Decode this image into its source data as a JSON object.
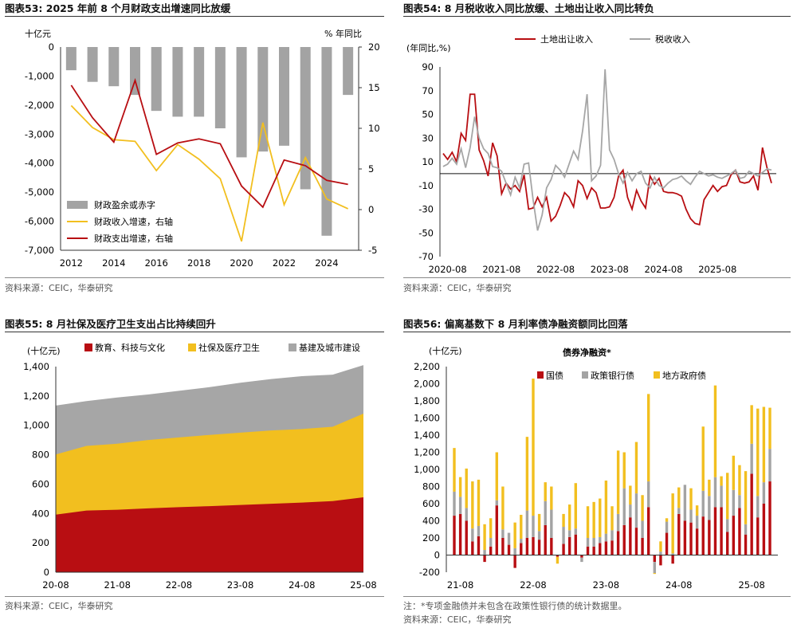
{
  "panels": {
    "p53": {
      "title": "图表53:  2025 年前 8 个月财政支出增速同比放缓",
      "source": "资料来源：CEIC，华泰研究"
    },
    "p54": {
      "title": "图表54:  8 月税收收入同比放缓、土地出让收入同比转负",
      "source": "资料来源：CEIC，华泰研究"
    },
    "p55": {
      "title": "图表55:  8 月社保及医疗卫生支出占比持续回升",
      "source": "资料来源：CEIC，华泰研究"
    },
    "p56": {
      "title": "图表56:  偏离基数下 8 月利率债净融资额同比回落",
      "note": "注：*专项金融债并未包含在政策性银行债的统计数据里。",
      "source": "资料来源：CEIC，华泰研究"
    }
  },
  "colors": {
    "red": "#b80e12",
    "yellow": "#f2bf1f",
    "gray": "#a6a6a6",
    "bar_gray": "#a3a3a3"
  },
  "chart_data": [
    {
      "id": "p53",
      "type": "bar+line",
      "left_unit": "十亿元",
      "right_unit": "% 年同比",
      "left_ylim": [
        -7000,
        0
      ],
      "left_ticks": [
        "0",
        "-1,000",
        "-2,000",
        "-3,000",
        "-4,000",
        "-5,000",
        "-6,000",
        "-7,000"
      ],
      "right_ylim": [
        -5,
        20
      ],
      "right_ticks": [
        "20",
        "15",
        "10",
        "5",
        "0",
        "-5"
      ],
      "x_ticks": [
        "2012",
        "2014",
        "2016",
        "2018",
        "2020",
        "2022",
        "2024"
      ],
      "x": [
        2012,
        2013,
        2014,
        2015,
        2016,
        2017,
        2018,
        2019,
        2020,
        2021,
        2022,
        2023,
        2024,
        2025
      ],
      "series": [
        {
          "name": "财政盈余或赤字",
          "axis": "left",
          "kind": "bar",
          "values": [
            -800,
            -1200,
            -1350,
            -1650,
            -2200,
            -2400,
            -2400,
            -2800,
            -3800,
            -3600,
            -3400,
            -4900,
            -6500,
            -1650
          ]
        },
        {
          "name": "财政收入增速，右轴",
          "axis": "right",
          "kind": "line",
          "values": [
            12.8,
            10.1,
            8.6,
            8.4,
            4.8,
            8.0,
            6.2,
            3.8,
            -3.9,
            10.7,
            0.6,
            6.4,
            1.3,
            0.1
          ]
        },
        {
          "name": "财政支出增速，右轴",
          "axis": "right",
          "kind": "line",
          "values": [
            15.3,
            11.3,
            8.3,
            15.9,
            6.8,
            8.2,
            8.7,
            8.1,
            2.9,
            0.3,
            6.1,
            5.4,
            3.6,
            3.1
          ]
        }
      ]
    },
    {
      "id": "p54",
      "type": "line",
      "ylabel": "(年同比,%)",
      "ylim": [
        -70,
        90
      ],
      "y_ticks": [
        "90",
        "70",
        "50",
        "30",
        "10",
        "-10",
        "-30",
        "-50",
        "-70"
      ],
      "x_ticks": [
        "2020-08",
        "2021-08",
        "2022-08",
        "2023-08",
        "2024-08",
        "2025-08"
      ],
      "x_start": "2020-07",
      "series": [
        {
          "name": "土地出让收入",
          "values": [
            17,
            12,
            18,
            10,
            34,
            28,
            67,
            67,
            20,
            11,
            -2,
            26,
            15,
            -17,
            -8,
            -13,
            -10,
            -15,
            -1,
            -30,
            -29,
            -20,
            -28,
            -20,
            -40,
            -36,
            -27,
            -16,
            -20,
            -28,
            -6,
            -10,
            -21,
            -12,
            -16,
            -29,
            -29,
            -28,
            -20,
            -2,
            3,
            -20,
            -30,
            -14,
            -23,
            -29,
            -2,
            -9,
            -4,
            -15,
            -16,
            -16,
            -17,
            -19,
            -30,
            -38,
            -42,
            -43,
            -22,
            -16,
            -10,
            -15,
            -11,
            -10,
            -1,
            3,
            -7,
            -8,
            -7,
            -2,
            -14,
            22,
            5,
            -8
          ]
        },
        {
          "name": "税收收入",
          "values": [
            6,
            8,
            13,
            8,
            21,
            5,
            22,
            48,
            30,
            21,
            17,
            6,
            5,
            2,
            -8,
            -18,
            -3,
            -12,
            8,
            9,
            -22,
            -48,
            -35,
            -12,
            -5,
            7,
            3,
            -3,
            8,
            19,
            12,
            36,
            67,
            -6,
            -2,
            7,
            88,
            20,
            12,
            0,
            -8,
            1,
            -6,
            0,
            2,
            -8,
            -12,
            -3,
            -10,
            -12,
            -8,
            -5,
            -4,
            -2,
            -6,
            -9,
            -3,
            2,
            0,
            -2,
            -1,
            -3,
            -4,
            -2,
            0,
            3,
            -4,
            -3,
            2,
            0,
            -2,
            1,
            4,
            3
          ]
        }
      ]
    },
    {
      "id": "p55",
      "type": "area",
      "ylabel": "(十亿元)",
      "ylim": [
        0,
        1400
      ],
      "y_ticks": [
        "1,400",
        "1,200",
        "1,000",
        "800",
        "600",
        "400",
        "200",
        "0"
      ],
      "x_ticks": [
        "20-08",
        "21-08",
        "22-08",
        "23-08",
        "24-08",
        "25-08"
      ],
      "legend": [
        "教育、科技与文化",
        "社保及医疗卫生",
        "基建及城市建设"
      ],
      "series": [
        {
          "name": "教育、科技与文化",
          "values": [
            392,
            420,
            425,
            435,
            443,
            450,
            458,
            466,
            474,
            484,
            510
          ]
        },
        {
          "name": "社保及医疗卫生",
          "values": [
            802,
            860,
            875,
            900,
            918,
            935,
            950,
            965,
            975,
            990,
            1080
          ]
        },
        {
          "name": "基建及城市建设",
          "values": [
            1135,
            1165,
            1190,
            1210,
            1235,
            1260,
            1290,
            1315,
            1335,
            1345,
            1410
          ]
        }
      ]
    },
    {
      "id": "p56",
      "type": "stacked-bar",
      "title": "债券净融资*",
      "ylabel": "(十亿元)",
      "ylim": [
        -200,
        2200
      ],
      "y_ticks": [
        "2,200",
        "2,000",
        "1,800",
        "1,600",
        "1,400",
        "1,200",
        "1,000",
        "800",
        "600",
        "400",
        "200",
        "0",
        "-200"
      ],
      "x_ticks": [
        "21-08",
        "22-08",
        "23-08",
        "24-08",
        "25-08"
      ],
      "legend": [
        "国债",
        "政策银行债",
        "地方政府债"
      ],
      "series": [
        {
          "name": "国债",
          "values": [
            460,
            480,
            400,
            160,
            220,
            -80,
            100,
            580,
            200,
            120,
            -150,
            140,
            200,
            210,
            180,
            350,
            200,
            -20,
            130,
            210,
            240,
            -30,
            100,
            100,
            140,
            160,
            170,
            280,
            350,
            440,
            320,
            200,
            560,
            -80,
            -120,
            260,
            -100,
            480,
            400,
            380,
            310,
            450,
            410,
            560,
            560,
            270,
            460,
            550,
            240,
            950,
            440,
            600,
            860
          ]
        },
        {
          "name": "政策银行债",
          "values": [
            280,
            200,
            150,
            150,
            120,
            60,
            100,
            60,
            100,
            140,
            80,
            50,
            320,
            250,
            100,
            280,
            330,
            0,
            200,
            80,
            70,
            -50,
            100,
            100,
            70,
            90,
            120,
            200,
            430,
            150,
            400,
            200,
            300,
            -130,
            40,
            130,
            20,
            70,
            420,
            150,
            150,
            300,
            280,
            350,
            250,
            150,
            300,
            150,
            120,
            350,
            250,
            250,
            380
          ]
        },
        {
          "name": "地方政府债",
          "values": [
            510,
            230,
            460,
            550,
            540,
            300,
            230,
            560,
            500,
            0,
            300,
            280,
            860,
            1600,
            200,
            220,
            270,
            -80,
            150,
            300,
            530,
            0,
            370,
            420,
            450,
            620,
            280,
            740,
            420,
            220,
            600,
            300,
            1020,
            -10,
            120,
            40,
            700,
            240,
            0,
            250,
            120,
            750,
            190,
            1070,
            110,
            540,
            400,
            350,
            620,
            450,
            1020,
            880,
            480
          ]
        }
      ]
    }
  ]
}
